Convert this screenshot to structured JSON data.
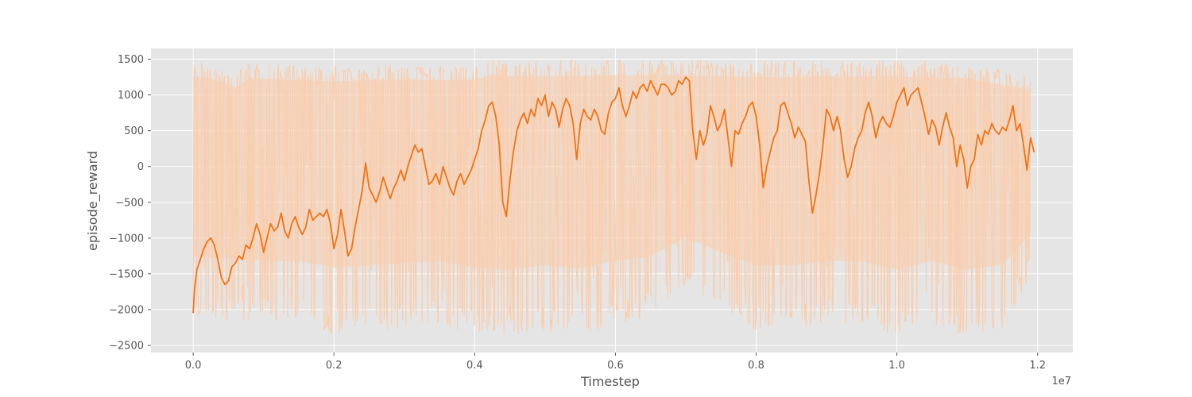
{
  "chart_data": {
    "type": "line",
    "xlabel": "Timestep",
    "ylabel": "episode_reward",
    "x_offset_label": "1e7",
    "xlim": [
      -0.06,
      1.25
    ],
    "ylim": [
      -2600,
      1650
    ],
    "grid": true,
    "x_ticks": [
      {
        "value": 0.0,
        "label": "0.0"
      },
      {
        "value": 0.2,
        "label": "0.2"
      },
      {
        "value": 0.4,
        "label": "0.4"
      },
      {
        "value": 0.6,
        "label": "0.6"
      },
      {
        "value": 0.8,
        "label": "0.8"
      },
      {
        "value": 1.0,
        "label": "1.0"
      },
      {
        "value": 1.2,
        "label": "1.2"
      }
    ],
    "y_ticks": [
      {
        "value": 1500,
        "label": "1500"
      },
      {
        "value": 1000,
        "label": "1000"
      },
      {
        "value": 500,
        "label": "500"
      },
      {
        "value": 0,
        "label": "0"
      },
      {
        "value": -500,
        "label": "−500"
      },
      {
        "value": -1000,
        "label": "−1000"
      },
      {
        "value": -1500,
        "label": "−1500"
      },
      {
        "value": -2000,
        "label": "−2000"
      },
      {
        "value": -2500,
        "label": "−2500"
      }
    ],
    "series": [
      {
        "role": "raw",
        "color": "#f9ceaf",
        "envelope_upper": [
          [
            0.0,
            1480
          ],
          [
            0.02,
            1450
          ],
          [
            0.04,
            1400
          ],
          [
            0.06,
            1300
          ],
          [
            0.08,
            1450
          ],
          [
            0.1,
            1450
          ],
          [
            0.14,
            1420
          ],
          [
            0.2,
            1400
          ],
          [
            0.25,
            1420
          ],
          [
            0.3,
            1430
          ],
          [
            0.35,
            1420
          ],
          [
            0.4,
            1420
          ],
          [
            0.42,
            1500
          ],
          [
            0.5,
            1480
          ],
          [
            0.6,
            1500
          ],
          [
            0.7,
            1500
          ],
          [
            0.8,
            1470
          ],
          [
            0.9,
            1480
          ],
          [
            1.0,
            1480
          ],
          [
            1.1,
            1450
          ],
          [
            1.19,
            1260
          ]
        ],
        "envelope_lower": [
          [
            0.0,
            -2100
          ],
          [
            0.05,
            -2150
          ],
          [
            0.1,
            -2200
          ],
          [
            0.15,
            -2200
          ],
          [
            0.2,
            -2350
          ],
          [
            0.25,
            -2300
          ],
          [
            0.3,
            -2250
          ],
          [
            0.35,
            -2200
          ],
          [
            0.4,
            -2350
          ],
          [
            0.45,
            -2400
          ],
          [
            0.5,
            -2300
          ],
          [
            0.55,
            -2380
          ],
          [
            0.6,
            -2200
          ],
          [
            0.65,
            -2100
          ],
          [
            0.7,
            -1650
          ],
          [
            0.75,
            -2000
          ],
          [
            0.8,
            -2300
          ],
          [
            0.85,
            -2300
          ],
          [
            0.9,
            -2200
          ],
          [
            0.95,
            -2200
          ],
          [
            1.0,
            -2400
          ],
          [
            1.05,
            -2200
          ],
          [
            1.1,
            -2400
          ],
          [
            1.15,
            -2300
          ],
          [
            1.19,
            -1550
          ]
        ]
      },
      {
        "role": "smoothed",
        "color": "#f07314",
        "points": [
          [
            0.0,
            -2050
          ],
          [
            0.002,
            -1700
          ],
          [
            0.005,
            -1450
          ],
          [
            0.01,
            -1300
          ],
          [
            0.015,
            -1150
          ],
          [
            0.02,
            -1050
          ],
          [
            0.025,
            -1000
          ],
          [
            0.03,
            -1100
          ],
          [
            0.035,
            -1300
          ],
          [
            0.04,
            -1550
          ],
          [
            0.045,
            -1650
          ],
          [
            0.05,
            -1600
          ],
          [
            0.055,
            -1400
          ],
          [
            0.06,
            -1350
          ],
          [
            0.065,
            -1250
          ],
          [
            0.07,
            -1300
          ],
          [
            0.075,
            -1100
          ],
          [
            0.08,
            -1150
          ],
          [
            0.085,
            -1000
          ],
          [
            0.09,
            -800
          ],
          [
            0.095,
            -950
          ],
          [
            0.1,
            -1200
          ],
          [
            0.105,
            -1000
          ],
          [
            0.11,
            -800
          ],
          [
            0.115,
            -900
          ],
          [
            0.12,
            -850
          ],
          [
            0.125,
            -650
          ],
          [
            0.13,
            -900
          ],
          [
            0.135,
            -1000
          ],
          [
            0.14,
            -800
          ],
          [
            0.145,
            -700
          ],
          [
            0.15,
            -850
          ],
          [
            0.155,
            -950
          ],
          [
            0.16,
            -850
          ],
          [
            0.165,
            -600
          ],
          [
            0.17,
            -750
          ],
          [
            0.175,
            -700
          ],
          [
            0.18,
            -650
          ],
          [
            0.185,
            -700
          ],
          [
            0.19,
            -600
          ],
          [
            0.195,
            -800
          ],
          [
            0.2,
            -1150
          ],
          [
            0.205,
            -950
          ],
          [
            0.21,
            -600
          ],
          [
            0.215,
            -900
          ],
          [
            0.22,
            -1250
          ],
          [
            0.225,
            -1150
          ],
          [
            0.23,
            -850
          ],
          [
            0.235,
            -600
          ],
          [
            0.24,
            -350
          ],
          [
            0.245,
            50
          ],
          [
            0.25,
            -300
          ],
          [
            0.255,
            -400
          ],
          [
            0.26,
            -500
          ],
          [
            0.265,
            -350
          ],
          [
            0.27,
            -150
          ],
          [
            0.275,
            -300
          ],
          [
            0.28,
            -450
          ],
          [
            0.285,
            -300
          ],
          [
            0.29,
            -200
          ],
          [
            0.295,
            -50
          ],
          [
            0.3,
            -200
          ],
          [
            0.305,
            0
          ],
          [
            0.31,
            150
          ],
          [
            0.315,
            300
          ],
          [
            0.32,
            200
          ],
          [
            0.325,
            250
          ],
          [
            0.33,
            0
          ],
          [
            0.335,
            -250
          ],
          [
            0.34,
            -200
          ],
          [
            0.345,
            -100
          ],
          [
            0.35,
            -250
          ],
          [
            0.355,
            0
          ],
          [
            0.36,
            -150
          ],
          [
            0.365,
            -300
          ],
          [
            0.37,
            -400
          ],
          [
            0.375,
            -200
          ],
          [
            0.38,
            -100
          ],
          [
            0.385,
            -250
          ],
          [
            0.39,
            -150
          ],
          [
            0.395,
            -50
          ],
          [
            0.4,
            100
          ],
          [
            0.405,
            250
          ],
          [
            0.41,
            500
          ],
          [
            0.415,
            650
          ],
          [
            0.42,
            850
          ],
          [
            0.425,
            900
          ],
          [
            0.43,
            700
          ],
          [
            0.435,
            300
          ],
          [
            0.44,
            -500
          ],
          [
            0.445,
            -700
          ],
          [
            0.45,
            -200
          ],
          [
            0.455,
            200
          ],
          [
            0.46,
            500
          ],
          [
            0.465,
            650
          ],
          [
            0.47,
            750
          ],
          [
            0.475,
            600
          ],
          [
            0.48,
            800
          ],
          [
            0.485,
            700
          ],
          [
            0.49,
            950
          ],
          [
            0.495,
            850
          ],
          [
            0.5,
            1000
          ],
          [
            0.505,
            700
          ],
          [
            0.51,
            900
          ],
          [
            0.515,
            800
          ],
          [
            0.52,
            550
          ],
          [
            0.525,
            800
          ],
          [
            0.53,
            950
          ],
          [
            0.535,
            850
          ],
          [
            0.54,
            600
          ],
          [
            0.545,
            100
          ],
          [
            0.55,
            600
          ],
          [
            0.555,
            800
          ],
          [
            0.56,
            700
          ],
          [
            0.565,
            650
          ],
          [
            0.57,
            800
          ],
          [
            0.575,
            700
          ],
          [
            0.58,
            500
          ],
          [
            0.585,
            450
          ],
          [
            0.59,
            750
          ],
          [
            0.595,
            900
          ],
          [
            0.6,
            950
          ],
          [
            0.605,
            1100
          ],
          [
            0.61,
            850
          ],
          [
            0.615,
            700
          ],
          [
            0.62,
            850
          ],
          [
            0.625,
            1050
          ],
          [
            0.63,
            950
          ],
          [
            0.635,
            1100
          ],
          [
            0.64,
            1150
          ],
          [
            0.645,
            1050
          ],
          [
            0.65,
            1200
          ],
          [
            0.655,
            1100
          ],
          [
            0.66,
            1000
          ],
          [
            0.665,
            1150
          ],
          [
            0.67,
            1150
          ],
          [
            0.675,
            1100
          ],
          [
            0.68,
            1000
          ],
          [
            0.685,
            1050
          ],
          [
            0.69,
            1200
          ],
          [
            0.695,
            1150
          ],
          [
            0.7,
            1250
          ],
          [
            0.705,
            1200
          ],
          [
            0.71,
            500
          ],
          [
            0.715,
            100
          ],
          [
            0.72,
            500
          ],
          [
            0.725,
            300
          ],
          [
            0.73,
            450
          ],
          [
            0.735,
            850
          ],
          [
            0.74,
            700
          ],
          [
            0.745,
            500
          ],
          [
            0.75,
            600
          ],
          [
            0.755,
            800
          ],
          [
            0.76,
            400
          ],
          [
            0.765,
            0
          ],
          [
            0.77,
            500
          ],
          [
            0.775,
            450
          ],
          [
            0.78,
            600
          ],
          [
            0.785,
            700
          ],
          [
            0.79,
            850
          ],
          [
            0.795,
            900
          ],
          [
            0.8,
            700
          ],
          [
            0.805,
            300
          ],
          [
            0.81,
            -300
          ],
          [
            0.815,
            0
          ],
          [
            0.82,
            200
          ],
          [
            0.825,
            400
          ],
          [
            0.83,
            500
          ],
          [
            0.835,
            850
          ],
          [
            0.84,
            900
          ],
          [
            0.845,
            750
          ],
          [
            0.85,
            600
          ],
          [
            0.855,
            400
          ],
          [
            0.86,
            550
          ],
          [
            0.865,
            450
          ],
          [
            0.87,
            350
          ],
          [
            0.875,
            -200
          ],
          [
            0.88,
            -650
          ],
          [
            0.885,
            -400
          ],
          [
            0.89,
            -100
          ],
          [
            0.895,
            300
          ],
          [
            0.9,
            800
          ],
          [
            0.905,
            700
          ],
          [
            0.91,
            500
          ],
          [
            0.915,
            700
          ],
          [
            0.92,
            500
          ],
          [
            0.925,
            100
          ],
          [
            0.93,
            -150
          ],
          [
            0.935,
            0
          ],
          [
            0.94,
            250
          ],
          [
            0.945,
            400
          ],
          [
            0.95,
            500
          ],
          [
            0.955,
            750
          ],
          [
            0.96,
            900
          ],
          [
            0.965,
            700
          ],
          [
            0.97,
            400
          ],
          [
            0.975,
            600
          ],
          [
            0.98,
            700
          ],
          [
            0.985,
            600
          ],
          [
            0.99,
            550
          ],
          [
            0.995,
            700
          ],
          [
            1.0,
            900
          ],
          [
            1.005,
            1000
          ],
          [
            1.01,
            1100
          ],
          [
            1.015,
            850
          ],
          [
            1.02,
            1000
          ],
          [
            1.025,
            1050
          ],
          [
            1.03,
            1100
          ],
          [
            1.035,
            900
          ],
          [
            1.04,
            700
          ],
          [
            1.045,
            450
          ],
          [
            1.05,
            650
          ],
          [
            1.055,
            550
          ],
          [
            1.06,
            300
          ],
          [
            1.065,
            550
          ],
          [
            1.07,
            750
          ],
          [
            1.075,
            550
          ],
          [
            1.08,
            400
          ],
          [
            1.085,
            0
          ],
          [
            1.09,
            300
          ],
          [
            1.095,
            100
          ],
          [
            1.1,
            -300
          ],
          [
            1.105,
            0
          ],
          [
            1.11,
            100
          ],
          [
            1.115,
            450
          ],
          [
            1.12,
            300
          ],
          [
            1.125,
            500
          ],
          [
            1.13,
            450
          ],
          [
            1.135,
            600
          ],
          [
            1.14,
            500
          ],
          [
            1.145,
            450
          ],
          [
            1.15,
            550
          ],
          [
            1.155,
            500
          ],
          [
            1.16,
            650
          ],
          [
            1.165,
            850
          ],
          [
            1.17,
            500
          ],
          [
            1.175,
            600
          ],
          [
            1.18,
            300
          ],
          [
            1.185,
            -50
          ],
          [
            1.19,
            400
          ],
          [
            1.195,
            200
          ]
        ]
      }
    ]
  }
}
